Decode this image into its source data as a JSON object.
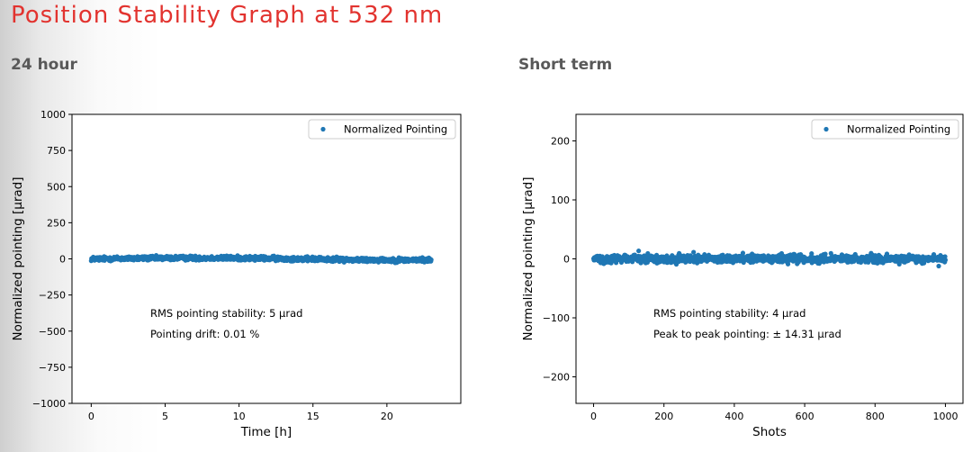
{
  "page": {
    "title": "Position Stability Graph at 532 nm",
    "title_color": "#e2332f",
    "heading_color": "#595959"
  },
  "sections": [
    {
      "heading": "24 hour"
    },
    {
      "heading": "Short term"
    }
  ],
  "chart_data": [
    {
      "type": "scatter",
      "xlabel": "Time [h]",
      "ylabel": "Normalized pointing [μrad]",
      "xlim": [
        -1.3,
        25
      ],
      "ylim": [
        -1000,
        1000
      ],
      "xticks": [
        "0",
        "5",
        "10",
        "15",
        "20"
      ],
      "xtick_values": [
        0,
        5,
        10,
        15,
        20
      ],
      "yticks": [
        "1000",
        "750",
        "500",
        "250",
        "0",
        "−250",
        "−500",
        "−750",
        "−1000"
      ],
      "ytick_values": [
        1000,
        750,
        500,
        250,
        0,
        -250,
        -500,
        -750,
        -1000
      ],
      "grid": false,
      "legend": {
        "position": "top-right",
        "entries": [
          "Normalized Pointing"
        ]
      },
      "series": [
        {
          "name": "Normalized Pointing",
          "color": "#1f77b4",
          "x_range": [
            0,
            23
          ],
          "y_mean": 0,
          "y_spread": 25,
          "num_points": 1000
        }
      ],
      "annotations": [
        "RMS pointing stability: 5 μrad",
        "Pointing drift: 0.01 %"
      ]
    },
    {
      "type": "scatter",
      "xlabel": "Shots",
      "ylabel": "Normalized pointing [μrad]",
      "xlim": [
        -50,
        1050
      ],
      "ylim": [
        -245,
        245
      ],
      "xticks": [
        "0",
        "200",
        "400",
        "600",
        "800",
        "1000"
      ],
      "xtick_values": [
        0,
        200,
        400,
        600,
        800,
        1000
      ],
      "yticks": [
        "200",
        "100",
        "0",
        "−100",
        "−200"
      ],
      "ytick_values": [
        200,
        100,
        0,
        -100,
        -200
      ],
      "grid": false,
      "legend": {
        "position": "top-right",
        "entries": [
          "Normalized Pointing"
        ]
      },
      "series": [
        {
          "name": "Normalized Pointing",
          "color": "#1f77b4",
          "x_range": [
            0,
            1000
          ],
          "y_mean": 0,
          "y_spread": 14.31,
          "num_points": 1000
        }
      ],
      "annotations": [
        "RMS pointing stability: 4 μrad",
        "Peak to peak pointing: ± 14.31 μrad"
      ]
    }
  ]
}
